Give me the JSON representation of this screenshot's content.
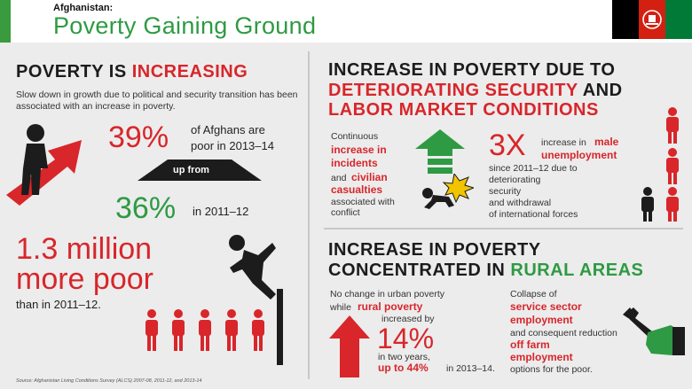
{
  "header": {
    "kicker": "Afghanistan:",
    "title": "Poverty Gaining Ground",
    "flag_colors": [
      "#000000",
      "#d32011",
      "#007a36"
    ]
  },
  "left": {
    "heading_prefix": "POVERTY IS ",
    "heading_highlight": "INCREASING",
    "intro": "Slow down in growth due to political and security transition has been associated with an increase in poverty.",
    "stat1_value": "39%",
    "stat1_text_a": "of Afghans are",
    "stat1_text_b": "poor in 2013–14",
    "up_from": "up from",
    "stat2_value": "36%",
    "stat2_text": "in 2011–12",
    "more_poor_a": "1.3 million",
    "more_poor_b": "more poor",
    "more_poor_c": "than in 2011–12.",
    "source": "Source: Afghanistan Living Conditions Survey (ALCS) 2007-08, 2011-12, and 2013-14"
  },
  "security": {
    "heading_a": "INCREASE IN POVERTY DUE TO",
    "heading_b": "DETERIORATING SECURITY",
    "heading_c": " AND",
    "heading_d": "LABOR MARKET CONDITIONS",
    "c1": "Continuous",
    "c2": "increase in",
    "c3": "incidents",
    "c4": "and",
    "c5": "civilian",
    "c6": "casualties",
    "c7": "associated with",
    "c8": "conflict",
    "x_value": "3X",
    "x_text_a": "increase in",
    "x_text_b": "male",
    "x_text_c": "unemployment",
    "x_text_d": "since 2011–12 due to",
    "x_text_e": "deteriorating",
    "x_text_f": "security",
    "x_text_g": "and withdrawal",
    "x_text_h": "of international forces"
  },
  "rural": {
    "heading_a": "INCREASE IN POVERTY",
    "heading_b": "CONCENTRATED IN ",
    "heading_c": "RURAL AREAS",
    "r1": "No change in urban poverty",
    "r2": "while",
    "r3": "rural poverty",
    "r4": "increased by",
    "r_value": "14%",
    "r5": "in two years,",
    "r6": "up to 44%",
    "r7": "in 2013–14.",
    "s1": "Collapse of",
    "s2": "service sector",
    "s3": "employment",
    "s4": "and consequent reduction",
    "s5": "off farm",
    "s6": "employment",
    "s7": "options for the poor."
  }
}
